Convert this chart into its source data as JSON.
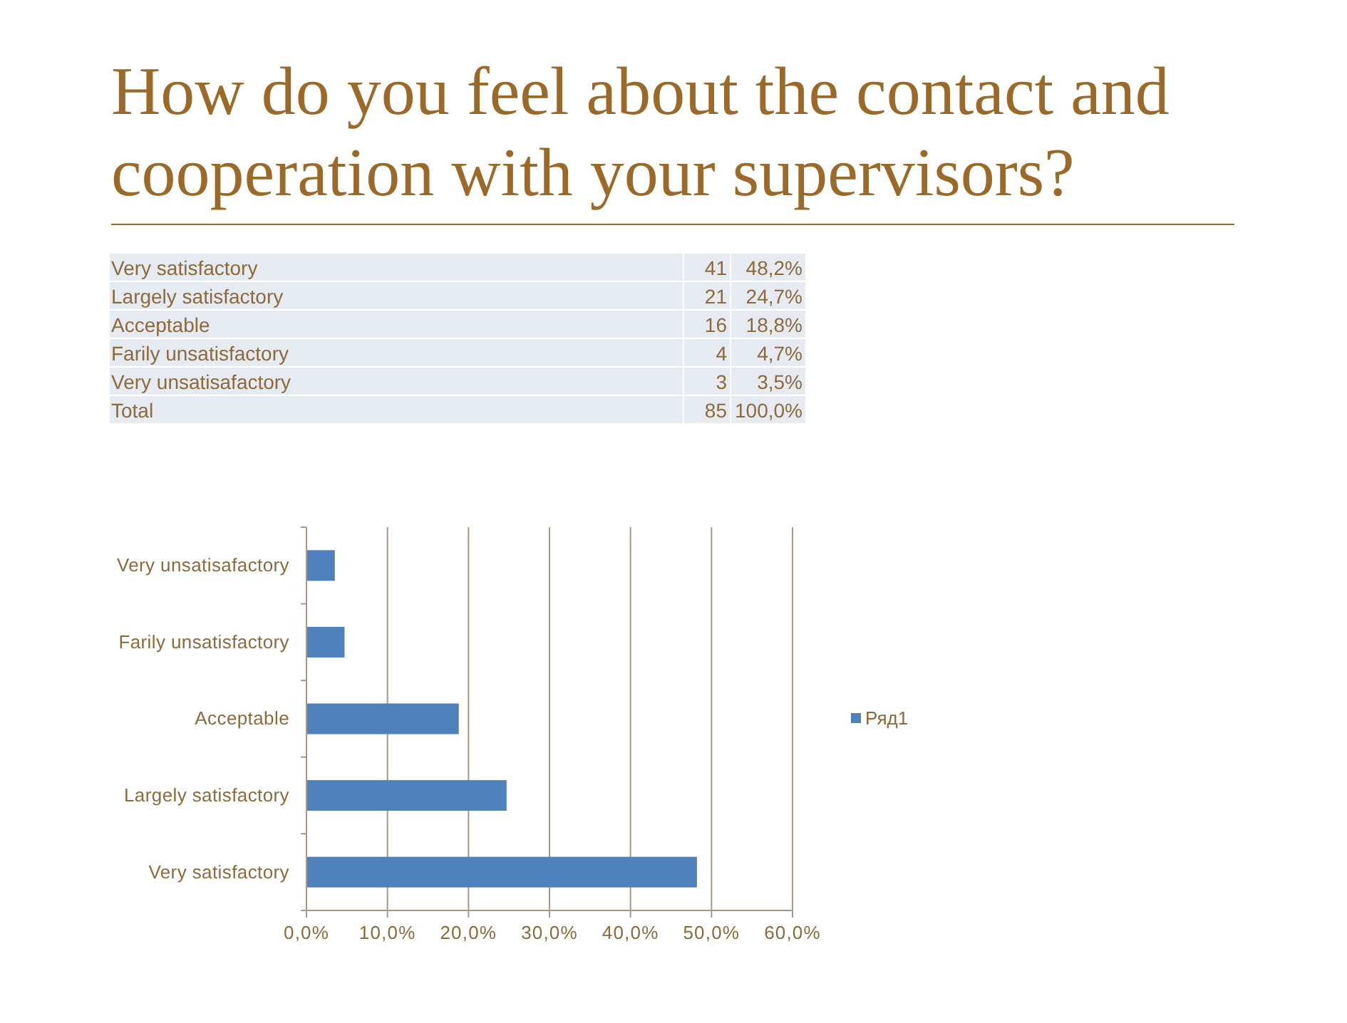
{
  "chart_data": [
    {
      "type": "other",
      "title": "How do you feel about the contact and cooperation with your supervisors?",
      "categories": [
        "Very satisfactory",
        "Largely satisfactory",
        "Acceptable",
        "Farily unsatisfactory",
        "Very unsatisafactory",
        "Total"
      ],
      "values": [
        41,
        21,
        16,
        4,
        3,
        85
      ],
      "data_labels": true,
      "annotations": [
        "48,2%",
        "24,7%",
        "18,8%",
        "4,7%",
        "3,5%",
        "100,0%"
      ]
    },
    {
      "type": "bar",
      "orientation": "horizontal",
      "categories": [
        "Very unsatisafactory",
        "Farily unsatisfactory",
        "Acceptable",
        "Largely satisfactory",
        "Very satisfactory"
      ],
      "series": [
        {
          "name": "Ряд1",
          "color": "#4f81bd",
          "values": [
            3.5,
            4.7,
            18.8,
            24.7,
            48.2
          ]
        }
      ],
      "xlim": [
        0,
        60
      ],
      "xticks": [
        {
          "value": 0,
          "label": "0,0%"
        },
        {
          "value": 10,
          "label": "10,0%"
        },
        {
          "value": 20,
          "label": "20,0%"
        },
        {
          "value": 30,
          "label": "30,0%"
        },
        {
          "value": 40,
          "label": "40,0%"
        },
        {
          "value": 50,
          "label": "50,0%"
        },
        {
          "value": 60,
          "label": "60,0%"
        }
      ],
      "grid": "x",
      "legend": "right"
    }
  ]
}
